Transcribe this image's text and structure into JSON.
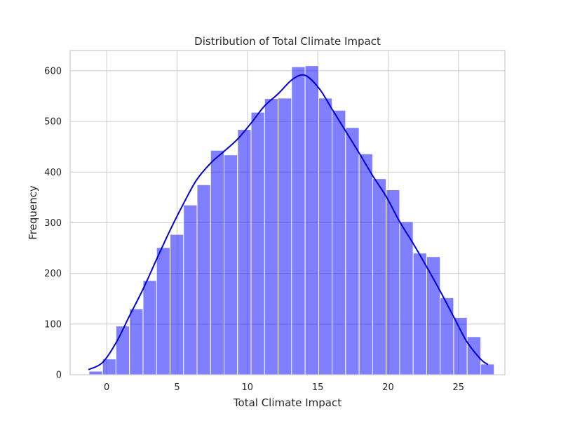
{
  "chart_data": {
    "type": "bar",
    "subtype": "histogram-with-kde",
    "title": "Distribution of Total Climate Impact",
    "xlabel": "Total Climate Impact",
    "ylabel": "Frequency",
    "xlim": [
      -2.6,
      28.3
    ],
    "ylim": [
      0,
      640
    ],
    "xticks": [
      0,
      5,
      10,
      15,
      20,
      25
    ],
    "yticks": [
      0,
      100,
      200,
      300,
      400,
      500,
      600
    ],
    "grid": true,
    "bin_width": 0.96,
    "bins": [
      {
        "start": -1.26,
        "count": 7
      },
      {
        "start": -0.3,
        "count": 31
      },
      {
        "start": 0.66,
        "count": 96
      },
      {
        "start": 1.62,
        "count": 130
      },
      {
        "start": 2.58,
        "count": 186
      },
      {
        "start": 3.54,
        "count": 251
      },
      {
        "start": 4.5,
        "count": 277
      },
      {
        "start": 5.46,
        "count": 335
      },
      {
        "start": 6.42,
        "count": 375
      },
      {
        "start": 7.38,
        "count": 443
      },
      {
        "start": 8.34,
        "count": 434
      },
      {
        "start": 9.3,
        "count": 484
      },
      {
        "start": 10.26,
        "count": 518
      },
      {
        "start": 11.22,
        "count": 545
      },
      {
        "start": 12.18,
        "count": 546
      },
      {
        "start": 13.14,
        "count": 608
      },
      {
        "start": 14.1,
        "count": 610
      },
      {
        "start": 15.06,
        "count": 546
      },
      {
        "start": 16.02,
        "count": 522
      },
      {
        "start": 16.98,
        "count": 488
      },
      {
        "start": 17.94,
        "count": 436
      },
      {
        "start": 18.9,
        "count": 387
      },
      {
        "start": 19.86,
        "count": 365
      },
      {
        "start": 20.82,
        "count": 302
      },
      {
        "start": 21.78,
        "count": 240
      },
      {
        "start": 22.74,
        "count": 233
      },
      {
        "start": 23.7,
        "count": 152
      },
      {
        "start": 24.66,
        "count": 113
      },
      {
        "start": 25.62,
        "count": 75
      },
      {
        "start": 26.58,
        "count": 21
      }
    ],
    "kde": {
      "x": [
        -1.3,
        -0.3,
        0.7,
        1.6,
        2.6,
        3.5,
        4.5,
        5.5,
        6.4,
        7.4,
        8.3,
        9.3,
        10.3,
        11.2,
        12.2,
        13.2,
        14.1,
        15.1,
        16.0,
        17.0,
        18.0,
        18.9,
        19.9,
        20.8,
        21.8,
        22.8,
        23.7,
        24.7,
        25.6,
        26.6,
        27.1
      ],
      "y": [
        10,
        24,
        65,
        115,
        170,
        225,
        285,
        340,
        385,
        418,
        440,
        465,
        498,
        530,
        555,
        583,
        591,
        565,
        525,
        480,
        435,
        393,
        350,
        303,
        258,
        210,
        165,
        112,
        65,
        30,
        20
      ]
    },
    "colors": {
      "bars": "#0000ff",
      "kde": "#0000dd"
    }
  }
}
